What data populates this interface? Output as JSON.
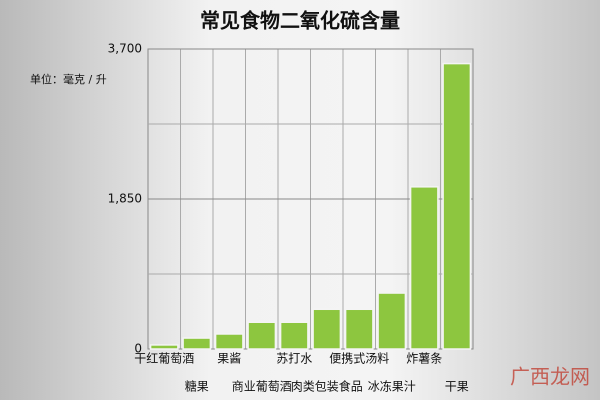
{
  "chart_data": {
    "type": "bar",
    "title": "常见食物二氧化硫含量",
    "unit_label": "单位：毫克 / 升",
    "categories": [
      "干红葡萄酒",
      "糖果",
      "果酱",
      "商业葡萄酒",
      "苏打水",
      "肉类包装食品",
      "便携式汤料",
      "冰冻果汁",
      "炸薯条",
      "干果"
    ],
    "values": [
      50,
      135,
      185,
      330,
      330,
      490,
      490,
      690,
      2000,
      3520
    ],
    "color": "#8dc63f",
    "ylim": [
      0,
      3700
    ],
    "yticks": [
      0,
      {
        "value": 1850,
        "label": "1,850"
      },
      {
        "value": 3700,
        "label": "3,700"
      }
    ],
    "minor_grid": [
      925,
      2775
    ],
    "grid": true,
    "watermark": "广西龙网"
  }
}
